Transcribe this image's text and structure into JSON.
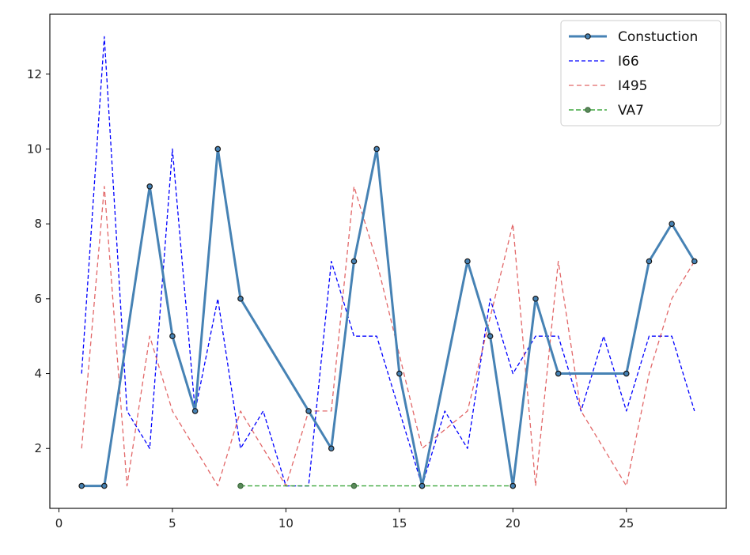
{
  "chart_data": {
    "type": "line",
    "title": "",
    "xlabel": "",
    "ylabel": "",
    "xlim": [
      -0.4,
      29.4
    ],
    "ylim": [
      0.4,
      13.6
    ],
    "xticks": [
      0,
      5,
      10,
      15,
      20,
      25
    ],
    "yticks": [
      2,
      4,
      6,
      8,
      10,
      12
    ],
    "grid": false,
    "legend_position": "top-right",
    "series": [
      {
        "name": "Constuction",
        "color": "#4682b4",
        "style": "solid",
        "marker": "circle",
        "x": [
          1,
          2,
          4,
          5,
          6,
          7,
          8,
          11,
          12,
          13,
          14,
          15,
          16,
          18,
          19,
          20,
          21,
          22,
          25,
          26,
          27,
          28
        ],
        "y": [
          1,
          1,
          9,
          5,
          3,
          10,
          6,
          3,
          2,
          7,
          10,
          4,
          1,
          7,
          5,
          1,
          6,
          4,
          4,
          7,
          8,
          7
        ]
      },
      {
        "name": "I66",
        "color": "#0000ff",
        "style": "dashed",
        "marker": "none",
        "x": [
          1,
          2,
          3,
          4,
          5,
          6,
          7,
          8,
          9,
          10,
          11,
          12,
          13,
          14,
          15,
          16,
          17,
          18,
          19,
          20,
          21,
          22,
          23,
          24,
          25,
          26,
          27,
          28
        ],
        "y": [
          4,
          13,
          3,
          2,
          10,
          3,
          6,
          2,
          3,
          1,
          1,
          7,
          5,
          5,
          3,
          1,
          3,
          2,
          6,
          4,
          5,
          5,
          3,
          5,
          3,
          5,
          5,
          3
        ]
      },
      {
        "name": "I495",
        "color": "#d62728",
        "style": "dashed",
        "marker": "none",
        "x": [
          1,
          2,
          3,
          4,
          5,
          7,
          8,
          10,
          11,
          12,
          13,
          14,
          16,
          18,
          20,
          21,
          22,
          23,
          25,
          26,
          27,
          28
        ],
        "y": [
          2,
          9,
          1,
          5,
          3,
          1,
          3,
          1,
          3,
          3,
          9,
          7,
          2,
          3,
          8,
          1,
          7,
          3,
          1,
          4,
          6,
          7
        ]
      },
      {
        "name": "VA7",
        "color": "#2ca02c",
        "style": "dashed",
        "marker": "circle",
        "x": [
          8,
          13,
          16,
          20
        ],
        "y": [
          1,
          1,
          1,
          1
        ]
      }
    ]
  }
}
